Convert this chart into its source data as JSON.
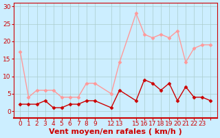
{
  "xlabel": "Vent moyen/en rafales ( km/h )",
  "background_color": "#cceeff",
  "grid_color": "#aacccc",
  "ylim": [
    -2,
    31
  ],
  "yticks": [
    0,
    5,
    10,
    15,
    20,
    25,
    30
  ],
  "x_positions": [
    0,
    1,
    2,
    3,
    4,
    5,
    6,
    7,
    8,
    9,
    11,
    12,
    14,
    15,
    16,
    17,
    18,
    19,
    20,
    21,
    22,
    23
  ],
  "x_tick_labels": [
    "0",
    "1",
    "2",
    "3",
    "4",
    "5",
    "6",
    "7",
    "8",
    "9",
    "12",
    "13",
    "15",
    "16",
    "17",
    "18",
    "19",
    "20",
    "21",
    "22",
    "23",
    ""
  ],
  "mean_x_idx": [
    0,
    1,
    2,
    3,
    4,
    5,
    6,
    7,
    8,
    9,
    11,
    12,
    14,
    15,
    16,
    17,
    18,
    19,
    20,
    21,
    22,
    23
  ],
  "mean_y": [
    2,
    2,
    2,
    3,
    1,
    1,
    2,
    2,
    3,
    3,
    1,
    6,
    3,
    9,
    8,
    6,
    8,
    3,
    7,
    4,
    4,
    3
  ],
  "gust_x_idx": [
    0,
    1,
    2,
    3,
    4,
    5,
    6,
    7,
    8,
    9,
    11,
    12,
    14,
    15,
    16,
    17,
    18,
    19,
    20,
    21,
    22,
    23
  ],
  "gust_y": [
    17,
    4,
    6,
    6,
    6,
    4,
    4,
    4,
    8,
    8,
    5,
    14,
    28,
    22,
    21,
    22,
    21,
    23,
    14,
    18,
    19,
    19
  ],
  "mean_color": "#cc0000",
  "gust_color": "#ff9999",
  "marker": "D",
  "marker_size": 2.5,
  "line_width": 1.0,
  "xlabel_fontsize": 8,
  "tick_fontsize": 6.5,
  "ylabel_fontsize": 7
}
